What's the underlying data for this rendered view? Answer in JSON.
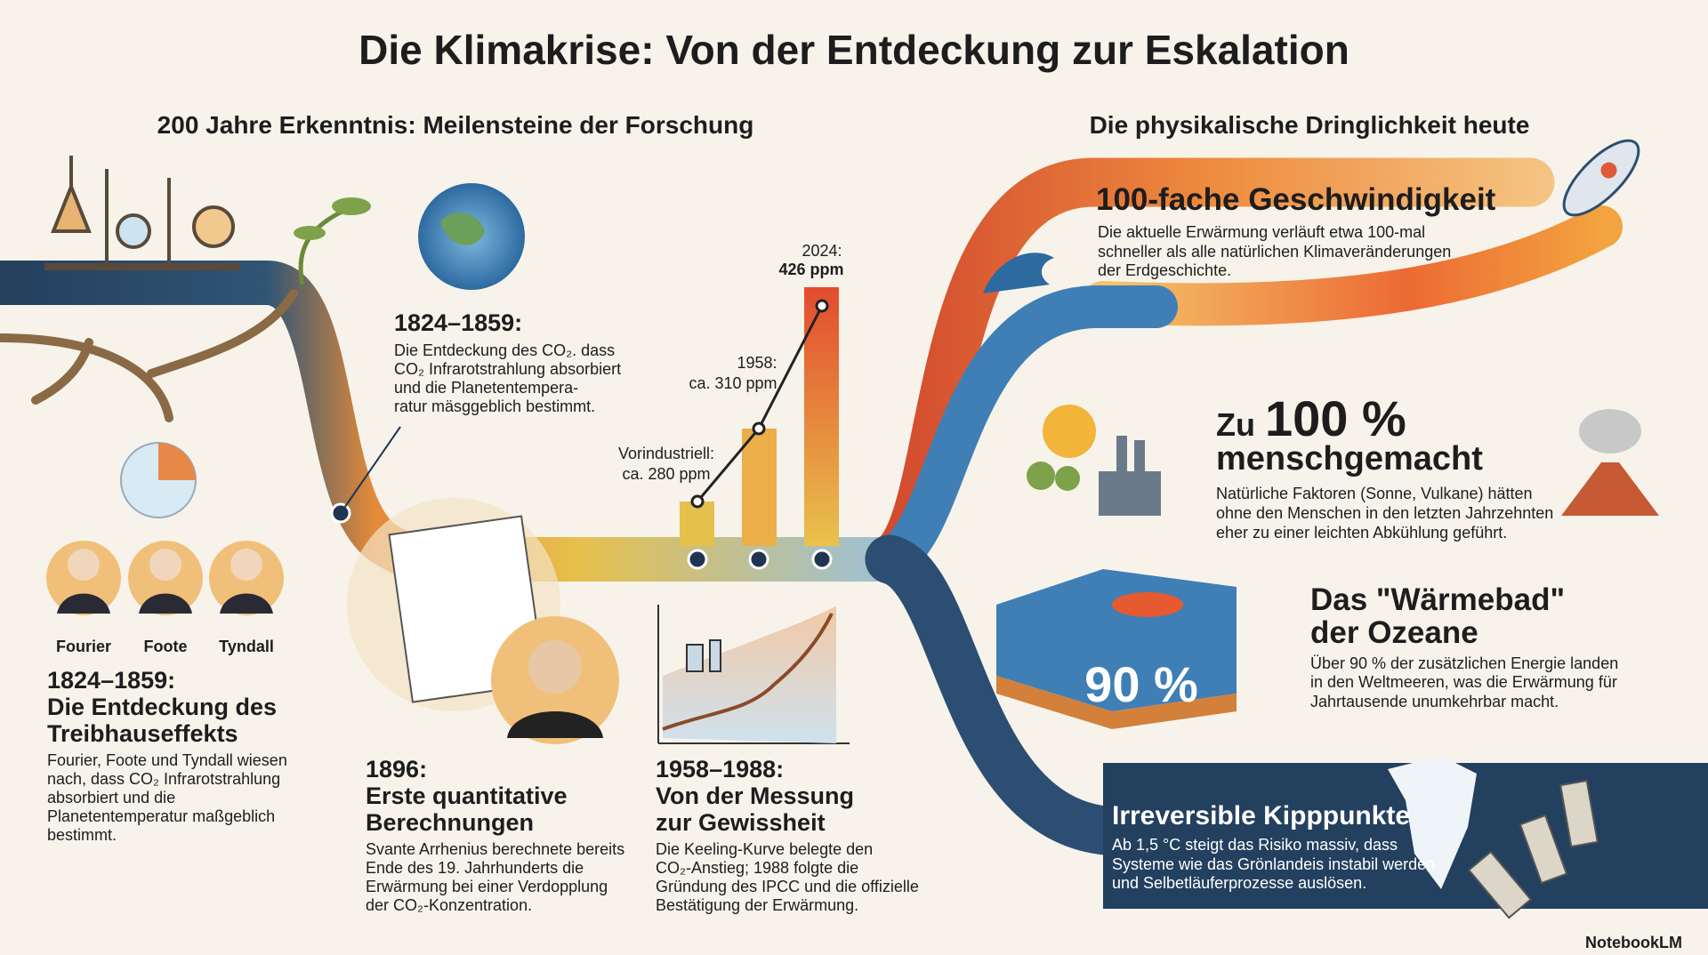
{
  "title": "Die Klimakrise: Von der Entdeckung zur Eskalation",
  "left_heading": "200 Jahre Erkenntnis: Meilensteine der Forschung",
  "right_heading": "Die physikalische Dringlichkeit heute",
  "callout": {
    "date": "1824–1859:",
    "lines": [
      "Die Entdeckung des CO₂. dass",
      "CO₂ Infrarotstrahlung absorbiert",
      "und die Planetentempera-",
      "ratur mäsggeblich bestimmt."
    ]
  },
  "scientists": [
    "Fourier",
    "Foote",
    "Tyndall"
  ],
  "co2_labels": [
    {
      "year": "Vorindustriell:",
      "value": "ca. 280 ppm"
    },
    {
      "year": "1958:",
      "value": "ca. 310 ppm"
    },
    {
      "year": "2024:",
      "value": "426 ppm"
    }
  ],
  "milestones": [
    {
      "date": "1824–1859:",
      "title": [
        "Die Entdeckung des",
        "Treibhauseffekts"
      ],
      "body": [
        "Fourier, Foote und Tyndall wiesen",
        "nach, dass CO₂ Infrarotstrahlung",
        "absorbiert und die",
        "Planetentemperatur maßgeblich",
        "bestimmt."
      ]
    },
    {
      "date": "1896:",
      "title": [
        "Erste quantitative",
        "Berechnungen"
      ],
      "body": [
        "Svante Arrhenius berechnete bereits",
        "Ende des 19. Jahrhunderts die",
        "Erwärmung bei einer Verdopplung",
        "der CO₂-Konzentration."
      ]
    },
    {
      "date": "1958–1988:",
      "title": [
        "Von der Messung",
        "zur Gewissheit"
      ],
      "body": [
        "Die Keeling-Kurve belegte den",
        "CO₂-Anstieg; 1988 folgte die",
        "Gründung des IPCC und die offizielle",
        "Bestätigung der Erwärmung."
      ]
    }
  ],
  "facts": [
    {
      "title": "100-fache Geschwindigkeit",
      "body": [
        "Die aktuelle Erwärmung verläuft etwa 100-mal",
        "schneller als alle natürlichen Klimaveränderungen",
        "der Erdgeschichte."
      ]
    },
    {
      "prefix": "Zu",
      "highlight": "100 %",
      "title": "menschgemacht",
      "body": [
        "Natürliche Faktoren (Sonne, Vulkane) hätten",
        "ohne den Menschen in den letzten Jahrzehnten",
        "eher zu einer leichten Abkühlung geführt."
      ]
    },
    {
      "title": [
        "Das \"Wärmebad\"",
        "der Ozeane"
      ],
      "badge": "90 %",
      "body": [
        "Über 90 % der zusätzlichen Energie landen",
        "in den Weltmeeren, was die Erwärmung für",
        "Jahrtausende unumkehrbar macht."
      ]
    },
    {
      "title": "Irreversible Kipppunkte",
      "body": [
        "Ab 1,5 °C steigt das Risiko massiv, dass",
        "Systeme wie das Grönlandeis instabil werden",
        "und Selbetläuferprozesse auslösen."
      ]
    }
  ],
  "footer": "NotebookLM"
}
